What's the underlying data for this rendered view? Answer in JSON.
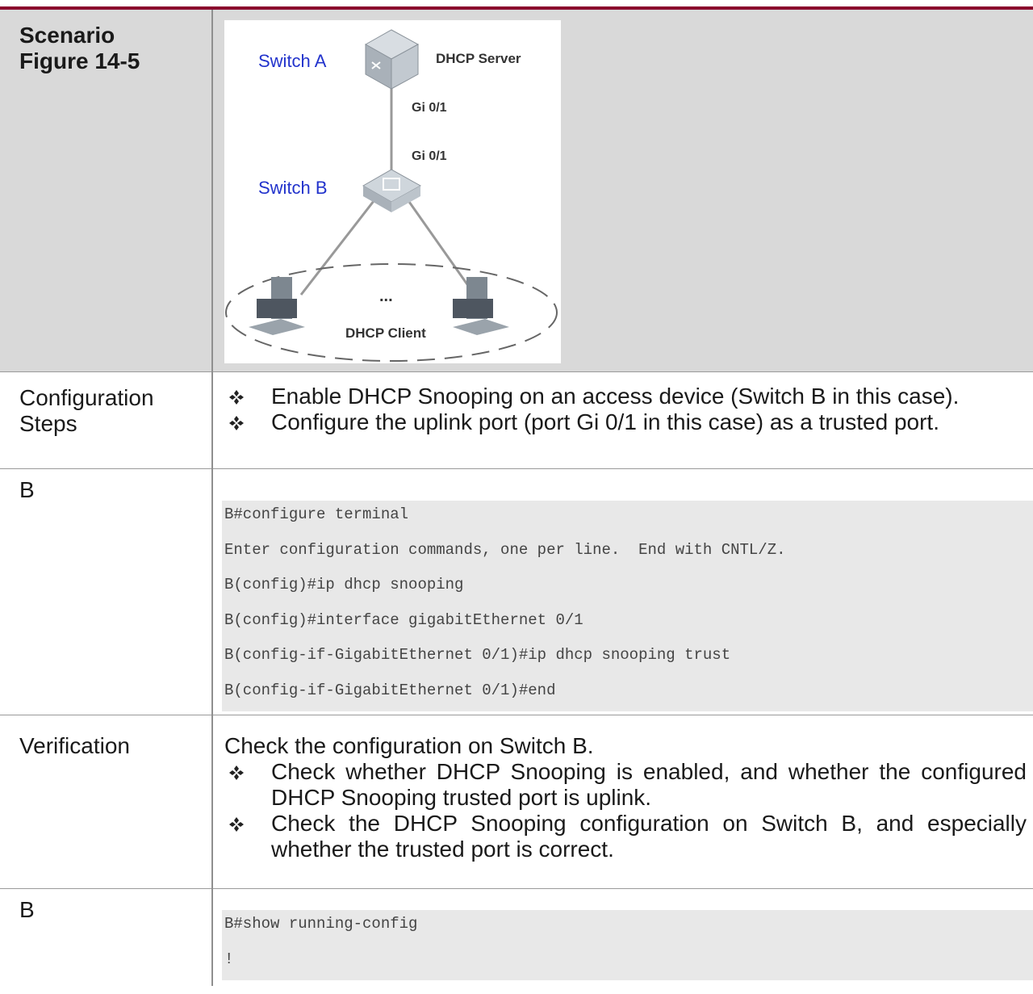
{
  "rows": [
    {
      "label": [
        "Scenario",
        "Figure 14-5"
      ],
      "diagram": {
        "switch_a": "Switch A",
        "server": "DHCP Server",
        "port_a": "Gi 0/1",
        "port_b": "Gi 0/1",
        "switch_b": "Switch B",
        "ellipsis": "...",
        "client": "DHCP Client"
      }
    },
    {
      "label": [
        "Configuration",
        "Steps"
      ],
      "bullets": [
        "Enable DHCP Snooping on an access device (Switch B in this case).",
        "Configure the uplink port (port Gi 0/1 in this case) as a trusted port."
      ]
    },
    {
      "label": [
        "B"
      ],
      "code": [
        "B#configure terminal",
        "Enter configuration commands, one per line.  End with CNTL/Z.",
        "B(config)#ip dhcp snooping",
        "B(config)#interface gigabitEthernet 0/1",
        "B(config-if-GigabitEthernet 0/1)#ip dhcp snooping trust",
        "B(config-if-GigabitEthernet 0/1)#end"
      ]
    },
    {
      "label": [
        "Verification"
      ],
      "intro": "Check the configuration on Switch B.",
      "bullets": [
        "Check whether DHCP Snooping is enabled, and whether the configured DHCP Snooping trusted port is uplink.",
        "Check the DHCP Snooping configuration on Switch B, and especially whether the trusted port is correct."
      ]
    },
    {
      "label": [
        "B"
      ],
      "code": [
        "B#show running-config",
        "!"
      ]
    }
  ]
}
